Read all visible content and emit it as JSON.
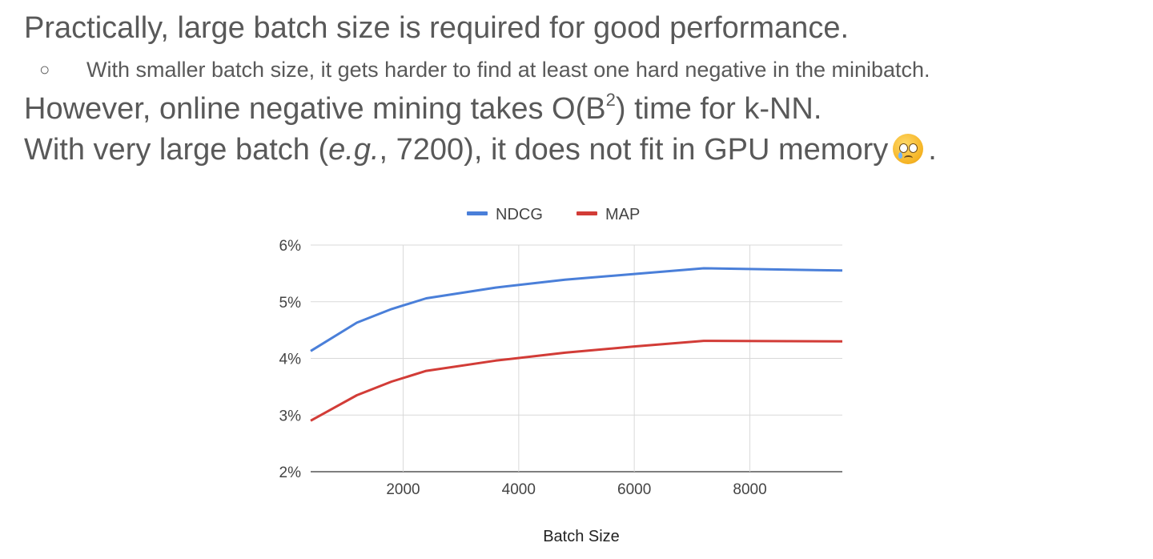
{
  "slide": {
    "line1": "Practically, large batch size is required for good performance.",
    "bullet_symbol": "○",
    "line2": "With smaller batch size, it gets harder to find at least one hard negative in the minibatch.",
    "line3_pre": "However, online negative mining takes O(B",
    "line3_sup": "2",
    "line3_post": ") time for k-NN.",
    "line4_pre": "With very large batch (",
    "line4_italic": "e.g.",
    "line4_post": ", 7200), it does not fit in GPU memory",
    "line4_end": ".",
    "emoji_icon": "crying-face-icon"
  },
  "chart_data": {
    "type": "line",
    "xlabel": "Batch Size",
    "ylabel": "",
    "xlim": [
      400,
      9600
    ],
    "ylim": [
      2,
      6
    ],
    "x_ticks": [
      2000,
      4000,
      6000,
      8000
    ],
    "x_tick_labels": [
      "2000",
      "4000",
      "6000",
      "8000"
    ],
    "y_ticks": [
      2,
      3,
      4,
      5,
      6
    ],
    "y_tick_labels": [
      "2%",
      "3%",
      "4%",
      "5%",
      "6%"
    ],
    "grid": true,
    "legend_position": "top",
    "series": [
      {
        "name": "NDCG",
        "color": "#4a7fd9",
        "x": [
          400,
          1200,
          1800,
          2400,
          3600,
          4800,
          6000,
          7200,
          9600
        ],
        "y": [
          4.13,
          4.63,
          4.87,
          5.06,
          5.25,
          5.39,
          5.49,
          5.59,
          5.55
        ]
      },
      {
        "name": "MAP",
        "color": "#d23c37",
        "x": [
          400,
          1200,
          1800,
          2400,
          3600,
          4800,
          6000,
          7200,
          9600
        ],
        "y": [
          2.9,
          3.35,
          3.59,
          3.78,
          3.96,
          4.1,
          4.21,
          4.31,
          4.3
        ]
      }
    ]
  }
}
